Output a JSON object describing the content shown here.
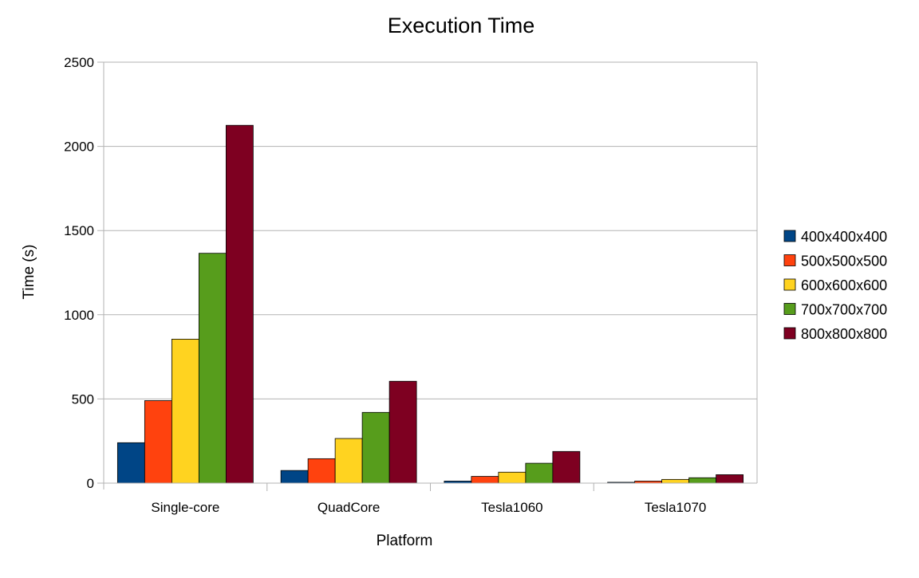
{
  "chart_data": {
    "type": "bar",
    "title": "Execution Time",
    "xlabel": "Platform",
    "ylabel": "Time (s)",
    "ylim": [
      0,
      2500
    ],
    "yticks": [
      0,
      500,
      1000,
      1500,
      2000,
      2500
    ],
    "grid": true,
    "legend_position": "right",
    "categories": [
      "Single-core",
      "QuadCore",
      "Tesla1060",
      "Tesla1070"
    ],
    "series": [
      {
        "name": "400x400x400",
        "color": "#004586",
        "values": [
          240,
          75,
          12,
          5
        ]
      },
      {
        "name": "500x500x500",
        "color": "#ff420e",
        "values": [
          490,
          145,
          40,
          12
        ]
      },
      {
        "name": "600x600x600",
        "color": "#ffd320",
        "values": [
          855,
          265,
          65,
          22
        ]
      },
      {
        "name": "700x700x700",
        "color": "#579d1c",
        "values": [
          1365,
          420,
          118,
          32
        ]
      },
      {
        "name": "800x800x800",
        "color": "#7e0021",
        "values": [
          2125,
          605,
          188,
          50
        ]
      }
    ]
  }
}
